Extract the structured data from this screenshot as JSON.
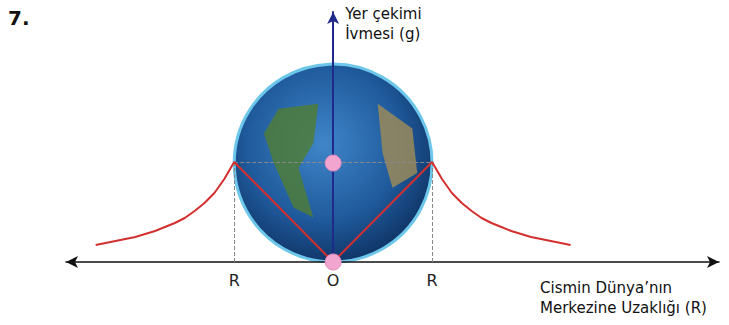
{
  "question_number": "7.",
  "chart_data": {
    "type": "line",
    "y_label": "Yer çekimi\nİvmesi (g)",
    "x_label": "Cismin Dünya’nın\nMerkezine Uzaklığı (R)",
    "x": [
      -2.4,
      -2.3,
      -2.2,
      -2.1,
      -2.0,
      -1.9,
      -1.8,
      -1.7,
      -1.6,
      -1.5,
      -1.4,
      -1.3,
      -1.2,
      -1.1,
      -1.0,
      0,
      1.0,
      1.1,
      1.2,
      1.3,
      1.4,
      1.5,
      1.6,
      1.7,
      1.8,
      1.9,
      2.0,
      2.1,
      2.2,
      2.3,
      2.4
    ],
    "values": [
      0.17,
      0.19,
      0.21,
      0.23,
      0.25,
      0.28,
      0.31,
      0.35,
      0.39,
      0.44,
      0.51,
      0.59,
      0.69,
      0.83,
      1,
      0,
      1,
      0.83,
      0.69,
      0.59,
      0.51,
      0.44,
      0.39,
      0.35,
      0.31,
      0.28,
      0.25,
      0.23,
      0.21,
      0.19,
      0.17
    ],
    "color": "#d32f2f",
    "xlim": [
      -2.7,
      3.9
    ],
    "ylim": [
      0,
      2.5
    ],
    "xticks": [
      {
        "value": -1,
        "label": "R"
      },
      {
        "value": 0,
        "label": "O"
      },
      {
        "value": 1,
        "label": "R"
      }
    ],
    "tick_labels": "x",
    "grid": false
  }
}
